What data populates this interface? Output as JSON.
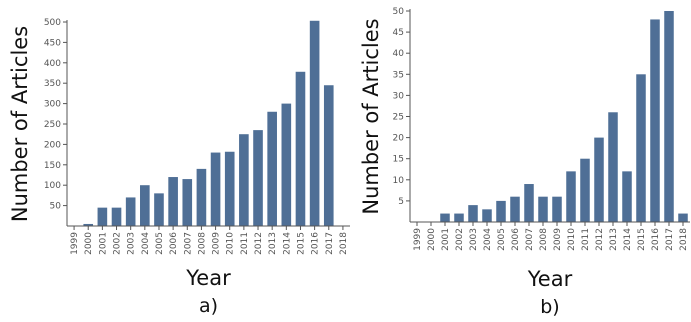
{
  "colors": {
    "bar": "#4f6f96",
    "axis": "#555555",
    "text": "#111111"
  },
  "chart_data": [
    {
      "type": "bar",
      "panel_label": "a)",
      "xlabel": "Year",
      "ylabel": "Number of Articles",
      "categories": [
        "1999",
        "2000",
        "2001",
        "2002",
        "2003",
        "2004",
        "2005",
        "2006",
        "2007",
        "2008",
        "2009",
        "2010",
        "2011",
        "2012",
        "2013",
        "2014",
        "2015",
        "2016",
        "2017",
        "2018"
      ],
      "values": [
        0,
        5,
        45,
        45,
        70,
        100,
        80,
        120,
        115,
        140,
        180,
        182,
        225,
        235,
        280,
        300,
        378,
        503,
        345,
        0
      ],
      "ylim": [
        0,
        500
      ],
      "yticks": [
        50,
        100,
        150,
        200,
        250,
        300,
        350,
        400,
        450,
        500
      ],
      "ytick_labels": [
        "50",
        "100",
        "150",
        "200",
        "250",
        "300",
        "350",
        "400",
        "450",
        "500"
      ],
      "grid": false,
      "legend": "none"
    },
    {
      "type": "bar",
      "panel_label": "b)",
      "xlabel": "Year",
      "ylabel": "Number of Articles",
      "categories": [
        "1999",
        "2000",
        "2001",
        "2002",
        "2003",
        "2004",
        "2005",
        "2006",
        "2007",
        "2008",
        "2009",
        "2010",
        "2011",
        "2012",
        "2013",
        "2014",
        "2015",
        "2016",
        "2017",
        "2018"
      ],
      "values": [
        0,
        0,
        2,
        2,
        4,
        3,
        5,
        6,
        9,
        6,
        6,
        12,
        15,
        20,
        26,
        12,
        35,
        48,
        50,
        2
      ],
      "ylim": [
        0,
        50
      ],
      "yticks": [
        5,
        10,
        15,
        20,
        25,
        30,
        35,
        40,
        45,
        50
      ],
      "ytick_labels": [
        "5",
        "10",
        "15",
        "20",
        "25",
        "30",
        "35",
        "40",
        "45",
        "50"
      ],
      "grid": false,
      "legend": "none"
    }
  ]
}
